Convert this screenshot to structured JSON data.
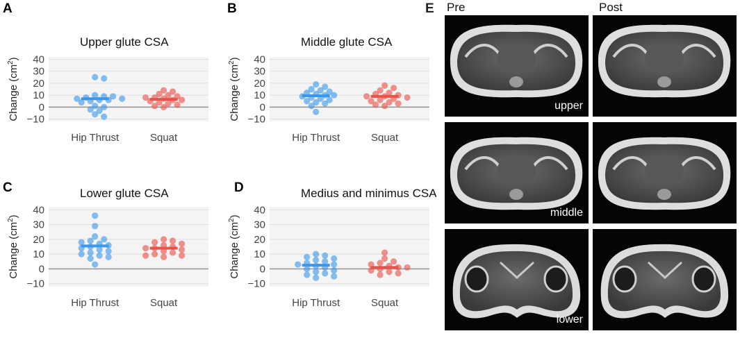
{
  "panels": [
    {
      "letter": "A",
      "chart_data": {
        "type": "scatter",
        "title": "Upper glute CSA",
        "ylabel_prefix": "Change (cm",
        "ylabel_sup": "2",
        "ylabel_suffix": ")",
        "ylim": [
          -12,
          42
        ],
        "yticks": [
          -10,
          0,
          10,
          20,
          30,
          40
        ],
        "yticklabels": [
          "−10",
          "0",
          "10",
          "20",
          "30",
          "40"
        ],
        "categories": [
          "Hip Thrust",
          "Squat"
        ],
        "series": [
          {
            "name": "Hip Thrust",
            "color": "#3c97e6",
            "mean": 7,
            "values": [
              25,
              24,
              10,
              9,
              8,
              9,
              7,
              7,
              6,
              5,
              6,
              4,
              1,
              0,
              -2,
              -3,
              -6,
              -8
            ]
          },
          {
            "name": "Squat",
            "color": "#e8524a",
            "mean": 6.5,
            "values": [
              14,
              13,
              11,
              10,
              9,
              8,
              8,
              7,
              6,
              6,
              5,
              4,
              3,
              2,
              1,
              0
            ]
          }
        ]
      }
    },
    {
      "letter": "B",
      "chart_data": {
        "type": "scatter",
        "title": "Middle glute CSA",
        "ylabel_prefix": "Change (cm",
        "ylabel_sup": "2",
        "ylabel_suffix": ")",
        "ylim": [
          -12,
          42
        ],
        "yticks": [
          -10,
          0,
          10,
          20,
          30,
          40
        ],
        "yticklabels": [
          "−10",
          "0",
          "10",
          "20",
          "30",
          "40"
        ],
        "categories": [
          "Hip Thrust",
          "Squat"
        ],
        "series": [
          {
            "name": "Hip Thrust",
            "color": "#3c97e6",
            "mean": 9.5,
            "values": [
              19,
              17,
              15,
              14,
              13,
              12,
              11,
              10,
              10,
              9,
              8,
              7,
              6,
              5,
              4,
              3,
              1,
              -4
            ]
          },
          {
            "name": "Squat",
            "color": "#e8524a",
            "mean": 9,
            "values": [
              18,
              16,
              14,
              12,
              11,
              10,
              9,
              9,
              8,
              7,
              6,
              5,
              4,
              3,
              2,
              1
            ]
          }
        ]
      }
    },
    {
      "letter": "C",
      "chart_data": {
        "type": "scatter",
        "title": "Lower glute CSA",
        "ylabel_prefix": "Change (cm",
        "ylabel_sup": "2",
        "ylabel_suffix": ")",
        "ylim": [
          -12,
          42
        ],
        "yticks": [
          -10,
          0,
          10,
          20,
          30,
          40
        ],
        "yticklabels": [
          "−10",
          "0",
          "10",
          "20",
          "30",
          "40"
        ],
        "categories": [
          "Hip Thrust",
          "Squat"
        ],
        "series": [
          {
            "name": "Hip Thrust",
            "color": "#3c97e6",
            "mean": 15.5,
            "values": [
              36,
              29,
              22,
              20,
              19,
              18,
              17,
              16,
              15,
              14,
              13,
              12,
              11,
              10,
              9,
              8,
              7,
              3
            ]
          },
          {
            "name": "Squat",
            "color": "#e8524a",
            "mean": 14,
            "values": [
              20,
              19,
              18,
              17,
              16,
              15,
              14,
              14,
              13,
              12,
              11,
              10,
              9,
              9,
              8
            ]
          }
        ]
      }
    },
    {
      "letter": "D",
      "chart_data": {
        "type": "scatter",
        "title": "Medius and minimus CSA",
        "ylabel_prefix": "Change (cm",
        "ylabel_sup": "2",
        "ylabel_suffix": ")",
        "ylim": [
          -12,
          42
        ],
        "yticks": [
          -10,
          0,
          10,
          20,
          30,
          40
        ],
        "yticklabels": [
          "−10",
          "0",
          "10",
          "20",
          "30",
          "40"
        ],
        "categories": [
          "Hip Thrust",
          "Squat"
        ],
        "series": [
          {
            "name": "Hip Thrust",
            "color": "#3c97e6",
            "mean": 2.5,
            "values": [
              10,
              9,
              8,
              7,
              6,
              5,
              4,
              3,
              3,
              2,
              1,
              0,
              -1,
              -2,
              -3,
              -4,
              -5,
              -6
            ]
          },
          {
            "name": "Squat",
            "color": "#e8524a",
            "mean": 1,
            "values": [
              11,
              7,
              5,
              4,
              3,
              2,
              1,
              1,
              0,
              -1,
              -2,
              -3,
              -4
            ]
          }
        ]
      }
    }
  ],
  "mri": {
    "letter": "E",
    "columns": [
      "Pre",
      "Post"
    ],
    "rows": [
      "upper",
      "middle",
      "lower"
    ]
  }
}
